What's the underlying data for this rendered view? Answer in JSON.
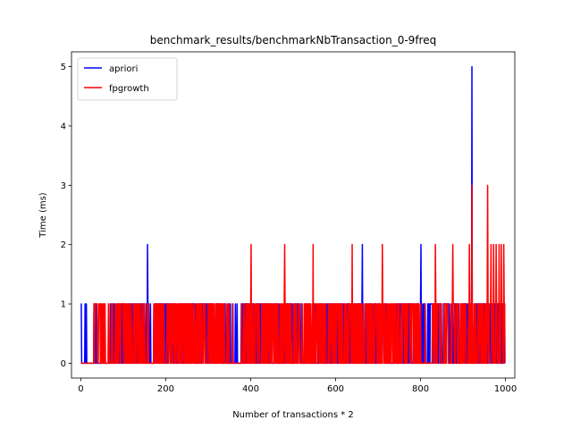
{
  "chart_data": {
    "type": "line",
    "title": "benchmark_results/benchmarkNbTransaction_0-9freq",
    "xlabel": "Number of transactions * 2",
    "ylabel": "Time (ms)",
    "xlim": [
      -22,
      1022
    ],
    "ylim": [
      -0.25,
      5.25
    ],
    "xticks": [
      0,
      200,
      400,
      600,
      800,
      1000
    ],
    "yticks": [
      0,
      1,
      2,
      3,
      4,
      5
    ],
    "legend": {
      "position": "top-left",
      "entries": [
        "apriori",
        "fpgrowth"
      ]
    },
    "x_range": [
      0,
      999
    ],
    "series": [
      {
        "name": "apriori",
        "color": "#0000ff",
        "pattern": "mostly alternates between 0 and 1 ms; denser 1 ms activity after ~800",
        "dense_segments": [
          [
            70,
            160
          ],
          [
            175,
            340
          ],
          [
            380,
            460
          ],
          [
            480,
            540
          ],
          [
            560,
            720
          ],
          [
            740,
            1000
          ]
        ],
        "peaks": [
          {
            "x": 157,
            "y": 2
          },
          {
            "x": 663,
            "y": 2
          },
          {
            "x": 801,
            "y": 2
          },
          {
            "x": 921,
            "y": 5
          }
        ]
      },
      {
        "name": "fpgrowth",
        "color": "#ff0000",
        "pattern": "mostly alternates between 0 and 1 ms from ~30 to ~800; frequent 2 ms spikes after ~900",
        "dense_segments": [
          [
            30,
            60
          ],
          [
            80,
            150
          ],
          [
            170,
            350
          ],
          [
            380,
            800
          ],
          [
            830,
            1000
          ]
        ],
        "peaks": [
          {
            "x": 401,
            "y": 2
          },
          {
            "x": 480,
            "y": 2
          },
          {
            "x": 547,
            "y": 2
          },
          {
            "x": 639,
            "y": 2
          },
          {
            "x": 710,
            "y": 2
          },
          {
            "x": 835,
            "y": 2
          },
          {
            "x": 876,
            "y": 2
          },
          {
            "x": 915,
            "y": 2
          },
          {
            "x": 921,
            "y": 3
          },
          {
            "x": 958,
            "y": 3
          },
          {
            "x": 966,
            "y": 2
          },
          {
            "x": 972,
            "y": 2
          },
          {
            "x": 978,
            "y": 2
          },
          {
            "x": 985,
            "y": 2
          },
          {
            "x": 990,
            "y": 2
          },
          {
            "x": 996,
            "y": 2
          }
        ]
      }
    ]
  }
}
